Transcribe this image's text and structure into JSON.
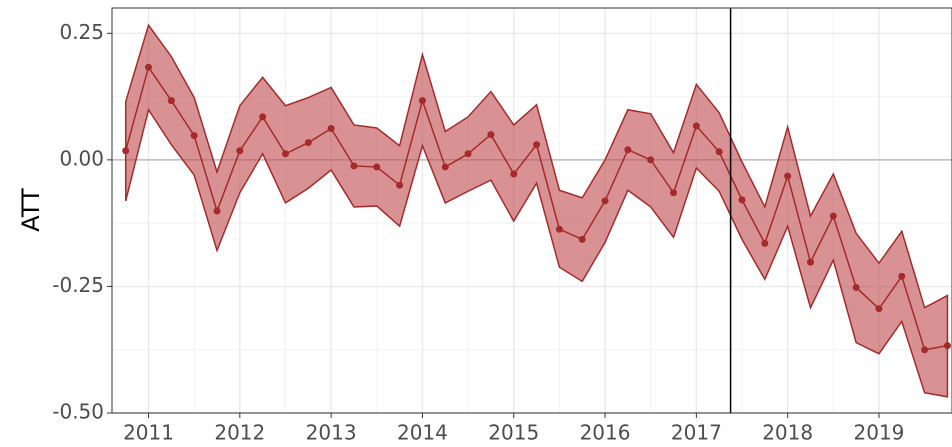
{
  "chart_data": {
    "type": "line",
    "y_label": "ATT",
    "x": [
      2010.75,
      2011,
      2011.25,
      2011.5,
      2011.75,
      2012,
      2012.25,
      2012.5,
      2012.75,
      2013,
      2013.25,
      2013.5,
      2013.75,
      2014,
      2014.25,
      2014.5,
      2014.75,
      2015,
      2015.25,
      2015.5,
      2015.75,
      2016,
      2016.25,
      2016.5,
      2016.75,
      2017,
      2017.25,
      2017.5,
      2017.75,
      2018,
      2018.25,
      2018.5,
      2018.75,
      2019,
      2019.25,
      2019.5,
      2019.75
    ],
    "values": [
      0.018,
      0.183,
      0.117,
      0.048,
      -0.101,
      0.018,
      0.085,
      0.012,
      0.034,
      0.062,
      -0.012,
      -0.014,
      -0.05,
      0.117,
      -0.014,
      0.012,
      0.05,
      -0.028,
      0.03,
      -0.137,
      -0.157,
      -0.081,
      0.02,
      0.0,
      -0.065,
      0.067,
      0.016,
      -0.079,
      -0.165,
      -0.032,
      -0.202,
      -0.111,
      -0.252,
      -0.294,
      -0.23,
      -0.375,
      -0.367
    ],
    "upper": [
      0.115,
      0.266,
      0.204,
      0.123,
      -0.024,
      0.107,
      0.163,
      0.107,
      0.123,
      0.143,
      0.069,
      0.063,
      0.028,
      0.208,
      0.056,
      0.085,
      0.135,
      0.069,
      0.109,
      -0.06,
      -0.075,
      0.0,
      0.099,
      0.091,
      0.014,
      0.149,
      0.093,
      -0.004,
      -0.093,
      0.065,
      -0.111,
      -0.028,
      -0.145,
      -0.204,
      -0.141,
      -0.292,
      -0.268
    ],
    "lower": [
      -0.081,
      0.099,
      0.03,
      -0.03,
      -0.179,
      -0.065,
      0.012,
      -0.085,
      -0.056,
      -0.02,
      -0.093,
      -0.091,
      -0.131,
      0.028,
      -0.085,
      -0.062,
      -0.04,
      -0.121,
      -0.046,
      -0.212,
      -0.24,
      -0.163,
      -0.06,
      -0.093,
      -0.153,
      -0.016,
      -0.062,
      -0.157,
      -0.236,
      -0.131,
      -0.292,
      -0.198,
      -0.361,
      -0.383,
      -0.319,
      -0.46,
      -0.468
    ],
    "color": "#a52a2a",
    "band_color": "#c0494b",
    "xlim": [
      2010.6,
      2019.8
    ],
    "ylim": [
      -0.5,
      0.3
    ],
    "xticks": [
      2011,
      2012,
      2013,
      2014,
      2015,
      2016,
      2017,
      2018,
      2019
    ],
    "yticks": [
      0.25,
      {
        "value": 0,
        "label": "0.00"
      },
      -0.25,
      {
        "value": -0.5,
        "label": "-0.50"
      }
    ],
    "hline": 0,
    "vline": 2017.375,
    "grid": true,
    "minor_grid": true
  }
}
